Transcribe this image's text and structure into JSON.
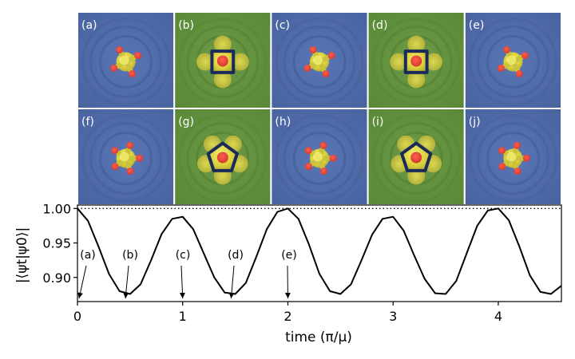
{
  "snapshots": {
    "rows": [
      [
        {
          "label": "(a)",
          "background": "blue",
          "ring": "none",
          "lobes": 4
        },
        {
          "label": "(b)",
          "background": "green",
          "ring": "square",
          "lobes": 4
        },
        {
          "label": "(c)",
          "background": "blue",
          "ring": "none",
          "lobes": 4
        },
        {
          "label": "(d)",
          "background": "green",
          "ring": "square",
          "lobes": 4
        },
        {
          "label": "(e)",
          "background": "blue",
          "ring": "none",
          "lobes": 4
        }
      ],
      [
        {
          "label": "(f)",
          "background": "blue",
          "ring": "none",
          "lobes": 5
        },
        {
          "label": "(g)",
          "background": "green",
          "ring": "pentagon",
          "lobes": 5
        },
        {
          "label": "(h)",
          "background": "blue",
          "ring": "none",
          "lobes": 5
        },
        {
          "label": "(i)",
          "background": "green",
          "ring": "pentagon",
          "lobes": 5
        },
        {
          "label": "(j)",
          "background": "blue",
          "ring": "none",
          "lobes": 5
        }
      ]
    ],
    "colors": {
      "blue": "#4a63a1",
      "green": "#5f8f3c",
      "core": "#e8e04a",
      "hot": "#e04040",
      "ring": "#1a2a5a"
    }
  },
  "chart_data": {
    "type": "line",
    "xlabel": "time (π/μ)",
    "ylabel": "|⟨ψt|ψ0⟩|",
    "xlim": [
      0,
      4.6
    ],
    "ylim": [
      0.865,
      1.005
    ],
    "xticks": [
      0,
      1,
      2,
      3,
      4
    ],
    "xtick_labels": [
      "0",
      "1",
      "2",
      "3",
      "4"
    ],
    "yticks": [
      0.9,
      0.95,
      1.0
    ],
    "ytick_labels": [
      "0.90",
      "0.95",
      "1.00"
    ],
    "reference_line": {
      "y": 1.0,
      "style": "dotted"
    },
    "series": [
      {
        "x": [
          0,
          0.1,
          0.2,
          0.3,
          0.4,
          0.5,
          0.6,
          0.7,
          0.8,
          0.9,
          1.0,
          1.1,
          1.2,
          1.3,
          1.4,
          1.5,
          1.6,
          1.7,
          1.8,
          1.9,
          2.0,
          2.1,
          2.2,
          2.3,
          2.4,
          2.5,
          2.6,
          2.7,
          2.8,
          2.9,
          3.0,
          3.1,
          3.2,
          3.3,
          3.4,
          3.5,
          3.6,
          3.7,
          3.8,
          3.9,
          4.0,
          4.1,
          4.2,
          4.3,
          4.4,
          4.5,
          4.6
        ],
        "y": [
          1.0,
          0.982,
          0.945,
          0.905,
          0.88,
          0.876,
          0.89,
          0.925,
          0.963,
          0.985,
          0.988,
          0.97,
          0.935,
          0.9,
          0.878,
          0.876,
          0.892,
          0.93,
          0.97,
          0.995,
          1.0,
          0.985,
          0.948,
          0.905,
          0.88,
          0.876,
          0.89,
          0.925,
          0.962,
          0.985,
          0.988,
          0.968,
          0.932,
          0.898,
          0.877,
          0.876,
          0.895,
          0.935,
          0.975,
          0.997,
          1.0,
          0.983,
          0.945,
          0.903,
          0.879,
          0.876,
          0.888
        ],
        "color": "#000000"
      }
    ],
    "annotations": [
      {
        "text": "(a)",
        "x": 0.0
      },
      {
        "text": "(b)",
        "x": 0.38
      },
      {
        "text": "(c)",
        "x": 1.0
      },
      {
        "text": "(d)",
        "x": 1.4
      },
      {
        "text": "(e)",
        "x": 2.0
      }
    ]
  }
}
